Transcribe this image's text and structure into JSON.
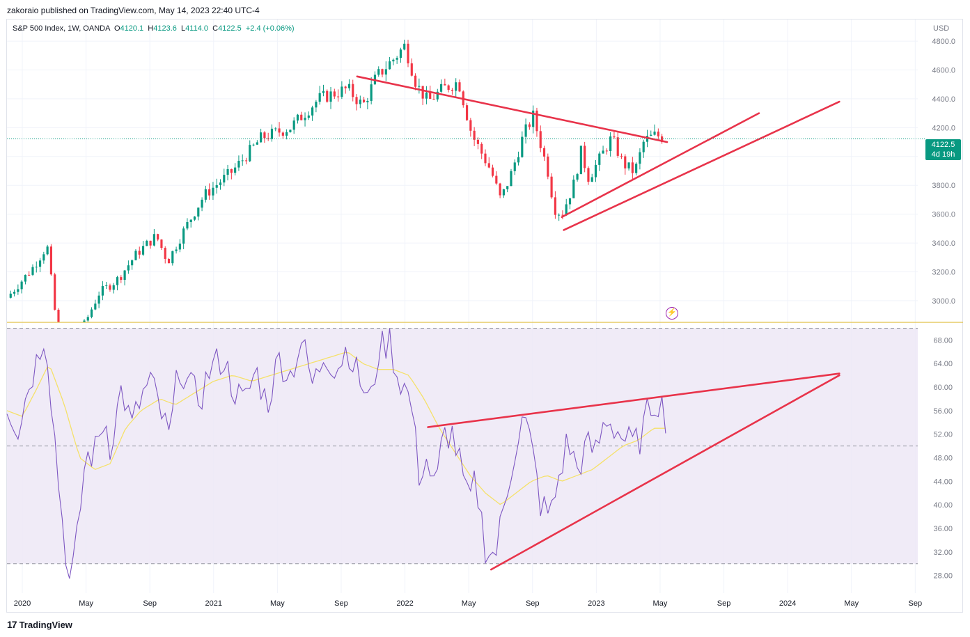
{
  "publisher": "zakoraio published on TradingView.com, May 14, 2023 22:40 UTC-4",
  "legend": {
    "symbol": "S&P 500 Index, 1W, OANDA",
    "o_label": "O",
    "o_value": "4120.1",
    "h_label": "H",
    "h_value": "4123.6",
    "l_label": "L",
    "l_value": "4114.0",
    "c_label": "C",
    "c_value": "4122.5",
    "change": "+2.4 (+0.06%)"
  },
  "currency": "USD",
  "price_tag": {
    "price": "4122.5",
    "countdown": "4d 19h"
  },
  "footer": {
    "brand": "TradingView"
  },
  "colors": {
    "up": "#089981",
    "down": "#f23645",
    "trend": "#e8334a",
    "rsi": "#7e57c2",
    "rsi_ma": "#f5e16a",
    "rsi_band": "#ede7f6"
  },
  "chart_data": [
    {
      "type": "candlestick",
      "title": "S&P 500 Index, 1W, OANDA",
      "ylim": [
        2850,
        4950
      ],
      "price_ticks": [
        "4800.0",
        "4600.0",
        "4400.0",
        "4200.0",
        "4000.0",
        "3800.0",
        "3600.0",
        "3400.0",
        "3200.0",
        "3000.0"
      ],
      "time_ticks": [
        "2020",
        "May",
        "Sep",
        "2021",
        "May",
        "Sep",
        "2022",
        "May",
        "Sep",
        "2023",
        "May",
        "Sep",
        "2024",
        "May",
        "Sep"
      ],
      "x_range": [
        2019.92,
        2024.68
      ],
      "last_price": 4122.5,
      "close_anchors": [
        [
          2019.92,
          3020
        ],
        [
          2020.05,
          3220
        ],
        [
          2020.13,
          3380
        ],
        [
          2020.2,
          2600
        ],
        [
          2020.25,
          2640
        ],
        [
          2020.33,
          2850
        ],
        [
          2020.4,
          3050
        ],
        [
          2020.5,
          3150
        ],
        [
          2020.6,
          3330
        ],
        [
          2020.7,
          3450
        ],
        [
          2020.76,
          3270
        ],
        [
          2020.85,
          3500
        ],
        [
          2020.95,
          3730
        ],
        [
          2021.1,
          3900
        ],
        [
          2021.25,
          4130
        ],
        [
          2021.4,
          4200
        ],
        [
          2021.55,
          4400
        ],
        [
          2021.7,
          4470
        ],
        [
          2021.78,
          4350
        ],
        [
          2021.85,
          4550
        ],
        [
          2021.95,
          4690
        ],
        [
          2022.0,
          4770
        ],
        [
          2022.06,
          4500
        ],
        [
          2022.12,
          4380
        ],
        [
          2022.2,
          4470
        ],
        [
          2022.28,
          4520
        ],
        [
          2022.35,
          4150
        ],
        [
          2022.45,
          3900
        ],
        [
          2022.5,
          3700
        ],
        [
          2022.55,
          3860
        ],
        [
          2022.62,
          4150
        ],
        [
          2022.67,
          4280
        ],
        [
          2022.75,
          3880
        ],
        [
          2022.78,
          3640
        ],
        [
          2022.82,
          3600
        ],
        [
          2022.88,
          3800
        ],
        [
          2022.92,
          4030
        ],
        [
          2022.96,
          3850
        ],
        [
          2023.02,
          3990
        ],
        [
          2023.08,
          4130
        ],
        [
          2023.14,
          3950
        ],
        [
          2023.2,
          3890
        ],
        [
          2023.25,
          4110
        ],
        [
          2023.31,
          4150
        ],
        [
          2023.36,
          4122.5
        ]
      ],
      "trendlines": [
        {
          "name": "descending-resistance",
          "from": [
            2021.75,
            4555
          ],
          "to": [
            2023.37,
            4100
          ]
        },
        {
          "name": "rising-support-inner",
          "from": [
            2022.82,
            3580
          ],
          "to": [
            2023.85,
            4300
          ]
        },
        {
          "name": "rising-support-outer",
          "from": [
            2022.83,
            3490
          ],
          "to": [
            2024.27,
            4380
          ]
        }
      ]
    },
    {
      "type": "line",
      "title": "RSI",
      "ylim": [
        25,
        71
      ],
      "rsi_ticks": [
        "68.00",
        "64.00",
        "60.00",
        "56.00",
        "52.00",
        "48.00",
        "44.00",
        "40.00",
        "36.00",
        "32.00",
        "28.00"
      ],
      "band": [
        30,
        70
      ],
      "midline": 50,
      "rsi_anchors": [
        [
          2019.92,
          57
        ],
        [
          2019.98,
          53
        ],
        [
          2020.03,
          60
        ],
        [
          2020.08,
          65
        ],
        [
          2020.12,
          70
        ],
        [
          2020.16,
          55
        ],
        [
          2020.2,
          40
        ],
        [
          2020.25,
          26
        ],
        [
          2020.28,
          32
        ],
        [
          2020.33,
          48
        ],
        [
          2020.38,
          49
        ],
        [
          2020.43,
          55
        ],
        [
          2020.46,
          50
        ],
        [
          2020.52,
          60
        ],
        [
          2020.57,
          53
        ],
        [
          2020.62,
          58
        ],
        [
          2020.67,
          61
        ],
        [
          2020.72,
          56
        ],
        [
          2020.77,
          51
        ],
        [
          2020.82,
          64
        ],
        [
          2020.87,
          60
        ],
        [
          2020.93,
          58
        ],
        [
          2020.98,
          63
        ],
        [
          2021.05,
          65
        ],
        [
          2021.1,
          60
        ],
        [
          2021.16,
          57
        ],
        [
          2021.22,
          63
        ],
        [
          2021.28,
          57
        ],
        [
          2021.34,
          65
        ],
        [
          2021.4,
          62
        ],
        [
          2021.46,
          68
        ],
        [
          2021.52,
          60
        ],
        [
          2021.58,
          66
        ],
        [
          2021.64,
          63
        ],
        [
          2021.7,
          67
        ],
        [
          2021.74,
          63
        ],
        [
          2021.78,
          60
        ],
        [
          2021.82,
          57
        ],
        [
          2021.86,
          66
        ],
        [
          2021.92,
          68
        ],
        [
          2021.96,
          62
        ],
        [
          2022.0,
          60
        ],
        [
          2022.04,
          56
        ],
        [
          2022.07,
          45
        ],
        [
          2022.11,
          48
        ],
        [
          2022.16,
          42
        ],
        [
          2022.2,
          52
        ],
        [
          2022.25,
          52
        ],
        [
          2022.3,
          45
        ],
        [
          2022.33,
          40
        ],
        [
          2022.37,
          44
        ],
        [
          2022.42,
          33
        ],
        [
          2022.47,
          31
        ],
        [
          2022.52,
          40
        ],
        [
          2022.57,
          49
        ],
        [
          2022.62,
          55
        ],
        [
          2022.66,
          50
        ],
        [
          2022.71,
          40
        ],
        [
          2022.76,
          38
        ],
        [
          2022.8,
          44
        ],
        [
          2022.85,
          51
        ],
        [
          2022.9,
          46
        ],
        [
          2022.95,
          50
        ],
        [
          2023.0,
          49
        ],
        [
          2023.05,
          55
        ],
        [
          2023.1,
          53
        ],
        [
          2023.15,
          51
        ],
        [
          2023.2,
          50
        ],
        [
          2023.24,
          52
        ],
        [
          2023.28,
          57
        ],
        [
          2023.33,
          58
        ],
        [
          2023.36,
          55
        ],
        [
          2023.37,
          55
        ]
      ],
      "rsi_ma_anchors": [
        [
          2019.92,
          56
        ],
        [
          2020.0,
          55
        ],
        [
          2020.08,
          60
        ],
        [
          2020.14,
          64
        ],
        [
          2020.22,
          57
        ],
        [
          2020.3,
          48
        ],
        [
          2020.38,
          46
        ],
        [
          2020.46,
          47
        ],
        [
          2020.54,
          53
        ],
        [
          2020.62,
          56
        ],
        [
          2020.72,
          58
        ],
        [
          2020.8,
          57
        ],
        [
          2020.9,
          59
        ],
        [
          2021.0,
          61
        ],
        [
          2021.1,
          62
        ],
        [
          2021.2,
          61
        ],
        [
          2021.3,
          62
        ],
        [
          2021.4,
          63
        ],
        [
          2021.5,
          64
        ],
        [
          2021.6,
          65
        ],
        [
          2021.7,
          66
        ],
        [
          2021.78,
          64
        ],
        [
          2021.86,
          63
        ],
        [
          2021.94,
          63
        ],
        [
          2022.02,
          62
        ],
        [
          2022.1,
          58
        ],
        [
          2022.18,
          53
        ],
        [
          2022.26,
          49
        ],
        [
          2022.34,
          45
        ],
        [
          2022.42,
          42
        ],
        [
          2022.5,
          40
        ],
        [
          2022.58,
          42
        ],
        [
          2022.66,
          44
        ],
        [
          2022.74,
          45
        ],
        [
          2022.82,
          44
        ],
        [
          2022.9,
          45
        ],
        [
          2022.98,
          46
        ],
        [
          2023.06,
          48
        ],
        [
          2023.14,
          50
        ],
        [
          2023.22,
          51
        ],
        [
          2023.3,
          53
        ],
        [
          2023.37,
          53
        ]
      ],
      "trendlines": [
        {
          "name": "rsi-resistance",
          "from": [
            2022.12,
            53.2
          ],
          "to": [
            2024.27,
            62.3
          ]
        },
        {
          "name": "rsi-support",
          "from": [
            2022.45,
            29.0
          ],
          "to": [
            2024.27,
            62.0
          ]
        }
      ]
    }
  ]
}
